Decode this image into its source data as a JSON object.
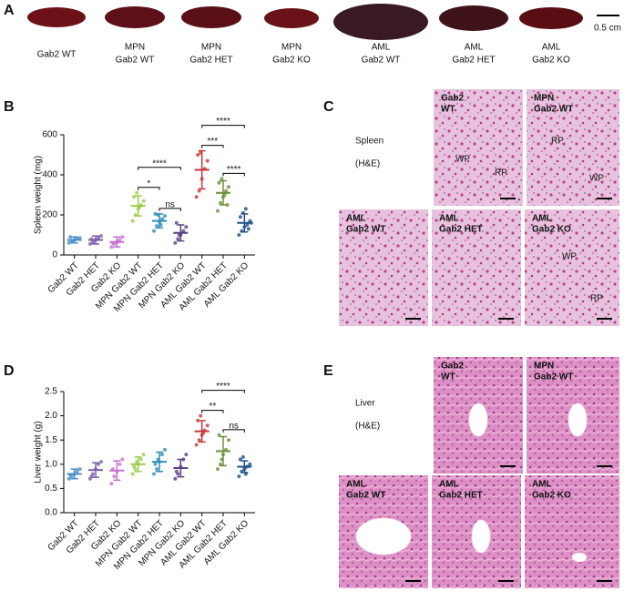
{
  "panel_labels": [
    "A",
    "B",
    "C",
    "D",
    "E"
  ],
  "spleen_photos": {
    "labels": [
      [
        "Gab2 WT"
      ],
      [
        "MPN",
        "Gab2 WT"
      ],
      [
        "MPN",
        "Gab2 HET"
      ],
      [
        "MPN",
        "Gab2 KO"
      ],
      [
        "AML",
        "Gab2 WT"
      ],
      [
        "AML",
        "Gab2 HET"
      ],
      [
        "AML",
        "Gab2 KO"
      ]
    ],
    "scale_bar": "0.5 cm"
  },
  "chart_data": [
    {
      "type": "dotplot",
      "y_label": "Spleen weight (mg)",
      "categories": [
        "Gab2 WT",
        "Gab2 HET",
        "Gab2 KO",
        "MPN Gab2 WT",
        "MPN Gab2 HET",
        "MPN Gab2 KO",
        "AML Gab2 WT",
        "AML Gab2 HET",
        "AML Gab2 KO"
      ],
      "colors": [
        "#4a8fc9",
        "#7a5ea8",
        "#c86fd1",
        "#9ccc4a",
        "#2f8fb8",
        "#5a3f8a",
        "#c8373a",
        "#6a8f3a",
        "#1f4f8a"
      ],
      "means": [
        75,
        75,
        65,
        245,
        170,
        110,
        425,
        310,
        160
      ],
      "sd": [
        15,
        20,
        25,
        50,
        35,
        40,
        95,
        60,
        45
      ],
      "points": [
        [
          60,
          70,
          75,
          80,
          85,
          90,
          70
        ],
        [
          55,
          65,
          75,
          85,
          95,
          80
        ],
        [
          40,
          55,
          65,
          75,
          90,
          60
        ],
        [
          170,
          200,
          230,
          250,
          270,
          290,
          310,
          240
        ],
        [
          120,
          145,
          165,
          180,
          195,
          205,
          200,
          150
        ],
        [
          60,
          80,
          100,
          120,
          140,
          160,
          100
        ],
        [
          290,
          320,
          380,
          430,
          470,
          500,
          510
        ],
        [
          220,
          260,
          290,
          320,
          340,
          360,
          380,
          300,
          250
        ],
        [
          100,
          120,
          140,
          150,
          170,
          190,
          210,
          230,
          130,
          160
        ]
      ],
      "ylim": [
        0,
        600
      ],
      "yticks": [
        0,
        200,
        400,
        600
      ],
      "comparisons": [
        {
          "from": "MPN Gab2 WT",
          "to": "MPN Gab2 KO",
          "label": "****"
        },
        {
          "from": "MPN Gab2 WT",
          "to": "MPN Gab2 HET",
          "label": "*"
        },
        {
          "from": "MPN Gab2 HET",
          "to": "MPN Gab2 KO",
          "label": "ns"
        },
        {
          "from": "AML Gab2 WT",
          "to": "AML Gab2 KO",
          "label": "****"
        },
        {
          "from": "AML Gab2 WT",
          "to": "AML Gab2 HET",
          "label": "***"
        },
        {
          "from": "AML Gab2 HET",
          "to": "AML Gab2 KO",
          "label": "****"
        }
      ]
    },
    {
      "type": "dotplot",
      "y_label": "Liver weight (g)",
      "categories": [
        "Gab2 WT",
        "Gab2 HET",
        "Gab2 KO",
        "MPN Gab2 WT",
        "MPN Gab2 HET",
        "MPN Gab2 KO",
        "AML Gab2 WT",
        "AML Gab2 HET",
        "AML Gab2 KO"
      ],
      "colors": [
        "#4a8fc9",
        "#7a5ea8",
        "#c86fd1",
        "#9ccc4a",
        "#2f8fb8",
        "#5a3f8a",
        "#c8373a",
        "#6a8f3a",
        "#1f4f8a"
      ],
      "means": [
        0.8,
        0.88,
        0.87,
        1.0,
        1.05,
        0.92,
        1.68,
        1.27,
        0.95
      ],
      "sd": [
        0.1,
        0.15,
        0.2,
        0.15,
        0.2,
        0.18,
        0.22,
        0.3,
        0.12
      ],
      "points": [
        [
          0.7,
          0.75,
          0.8,
          0.85,
          0.9,
          0.78
        ],
        [
          0.7,
          0.8,
          0.9,
          1.0,
          1.05,
          0.75
        ],
        [
          0.6,
          0.75,
          0.85,
          1.0,
          1.1,
          0.9
        ],
        [
          0.8,
          0.9,
          1.0,
          1.1,
          1.2,
          0.95,
          1.05
        ],
        [
          0.8,
          0.9,
          1.05,
          1.2,
          1.3,
          1.0,
          1.1
        ],
        [
          0.7,
          0.8,
          0.95,
          1.1,
          1.2,
          0.85
        ],
        [
          1.4,
          1.5,
          1.6,
          1.7,
          1.8,
          1.9,
          2.0,
          1.65
        ],
        [
          0.9,
          1.0,
          1.2,
          1.3,
          1.5,
          1.6,
          1.1
        ],
        [
          0.75,
          0.85,
          0.9,
          0.95,
          1.0,
          1.1,
          1.15,
          0.8
        ]
      ],
      "ylim": [
        0,
        2.5
      ],
      "yticks": [
        {
          "value": 0,
          "label": "0.0"
        },
        0.5,
        {
          "value": 1,
          "label": "1.0"
        },
        1.5,
        {
          "value": 2,
          "label": "2.0"
        },
        2.5
      ],
      "comparisons": [
        {
          "from": "AML Gab2 WT",
          "to": "AML Gab2 KO",
          "label": "****"
        },
        {
          "from": "AML Gab2 WT",
          "to": "AML Gab2 HET",
          "label": "**"
        },
        {
          "from": "AML Gab2 HET",
          "to": "AML Gab2 KO",
          "label": "ns"
        }
      ]
    }
  ],
  "histology": [
    {
      "tissue": "Spleen",
      "stain": "(H&E)",
      "images": [
        {
          "label": [
            "Gab2",
            "WT"
          ],
          "regions": [
            "WP",
            "RP"
          ]
        },
        {
          "label": [
            "MPN",
            "Gab2 WT"
          ],
          "regions": [
            "RP",
            "WP"
          ]
        },
        {
          "label": [
            "AML",
            "Gab2 WT"
          ],
          "regions": []
        },
        {
          "label": [
            "AML",
            "Gab2 HET"
          ],
          "regions": []
        },
        {
          "label": [
            "AML",
            "Gab2 KO"
          ],
          "regions": [
            "WP",
            "RP"
          ]
        }
      ]
    },
    {
      "tissue": "Liver",
      "stain": "(H&E)",
      "images": [
        {
          "label": [
            "Gab2",
            "WT"
          ],
          "regions": []
        },
        {
          "label": [
            "MPN",
            "Gab2 WT"
          ],
          "regions": []
        },
        {
          "label": [
            "AML",
            "Gab2 WT"
          ],
          "regions": []
        },
        {
          "label": [
            "AML",
            "Gab2 HET"
          ],
          "regions": []
        },
        {
          "label": [
            "AML",
            "Gab2 KO"
          ],
          "regions": []
        }
      ]
    }
  ]
}
